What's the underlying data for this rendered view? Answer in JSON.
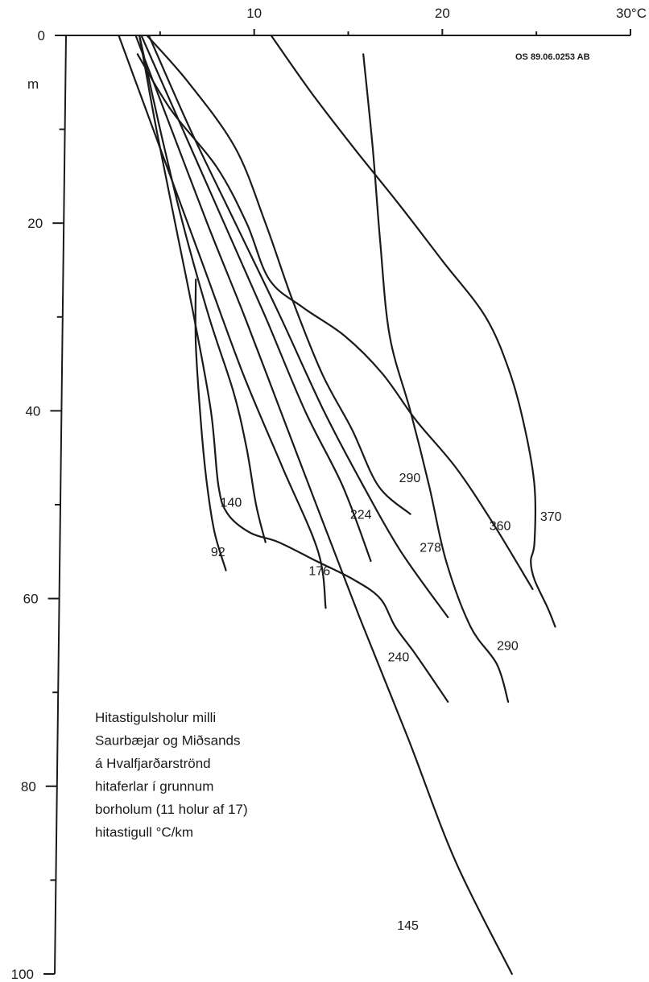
{
  "chart_data": {
    "type": "line",
    "title": "",
    "xlabel": "°C",
    "ylabel": "m",
    "xlim": [
      0,
      30
    ],
    "ylim": [
      0,
      100
    ],
    "y_inverted": true,
    "x_axis_position": "top",
    "x_ticks": [
      "10",
      "20",
      "30°C"
    ],
    "x_tick_values": [
      10,
      20,
      30
    ],
    "y_ticks": [
      "0",
      "20",
      "40",
      "60",
      "80",
      "100"
    ],
    "y_tick_values": [
      0,
      20,
      40,
      60,
      80,
      100
    ],
    "grid": false,
    "reference_id": "OS 89.06.0253 AB",
    "annotation_lines": [
      "Hitastigulsholur milli",
      "Saurbæjar og Miðsands",
      "á Hvalfjarðarströnd",
      "hitaferlar í grunnum",
      "borholum  (11 holur af 17)",
      "hitastigull °C/km"
    ],
    "series": [
      {
        "label": "92",
        "points": [
          [
            6.9,
            26
          ],
          [
            6.9,
            33
          ],
          [
            7.2,
            42
          ],
          [
            7.5,
            48
          ],
          [
            7.9,
            53
          ],
          [
            8.5,
            57
          ]
        ]
      },
      {
        "label": "140",
        "points": [
          [
            3.9,
            0
          ],
          [
            5.0,
            10
          ],
          [
            6.2,
            20
          ],
          [
            7.6,
            30
          ],
          [
            8.9,
            38
          ],
          [
            9.6,
            44
          ],
          [
            10.1,
            50
          ],
          [
            10.6,
            54
          ]
        ]
      },
      {
        "label": "176",
        "points": [
          [
            2.8,
            0
          ],
          [
            5.0,
            12
          ],
          [
            7.2,
            24
          ],
          [
            9.4,
            36
          ],
          [
            11.5,
            46
          ],
          [
            13.4,
            55
          ],
          [
            13.8,
            61
          ]
        ]
      },
      {
        "label": "145",
        "points": [
          [
            3.7,
            0
          ],
          [
            5.6,
            10
          ],
          [
            7.5,
            20
          ],
          [
            9.5,
            30
          ],
          [
            11.4,
            40
          ],
          [
            13.3,
            50
          ],
          [
            15.6,
            62
          ],
          [
            18.2,
            75
          ],
          [
            20.7,
            88
          ],
          [
            23.7,
            100
          ]
        ]
      },
      {
        "label": "224",
        "points": [
          [
            4.0,
            0
          ],
          [
            6.2,
            10
          ],
          [
            8.4,
            20
          ],
          [
            10.6,
            30
          ],
          [
            12.7,
            40
          ],
          [
            14.7,
            48
          ],
          [
            16.2,
            56
          ]
        ]
      },
      {
        "label": "240",
        "points": [
          [
            3.9,
            0
          ],
          [
            4.8,
            10
          ],
          [
            5.8,
            20
          ],
          [
            6.8,
            30
          ],
          [
            7.7,
            40
          ],
          [
            8.1,
            48
          ],
          [
            8.6,
            51
          ],
          [
            9.8,
            53
          ],
          [
            11.3,
            54
          ],
          [
            13.3,
            56
          ],
          [
            15.3,
            58
          ],
          [
            16.7,
            60
          ],
          [
            17.5,
            63
          ],
          [
            18.6,
            66
          ],
          [
            20.3,
            71
          ]
        ]
      },
      {
        "label": "278",
        "points": [
          [
            4.4,
            0
          ],
          [
            6.6,
            10
          ],
          [
            9.0,
            20
          ],
          [
            11.4,
            30
          ],
          [
            13.7,
            40
          ],
          [
            15.8,
            48
          ],
          [
            17.8,
            55
          ],
          [
            20.3,
            62
          ]
        ]
      },
      {
        "label": "290",
        "points": [
          [
            4.3,
            0
          ],
          [
            6.5,
            5
          ],
          [
            9.0,
            12
          ],
          [
            10.6,
            20
          ],
          [
            12.0,
            28
          ],
          [
            13.6,
            36
          ],
          [
            15.2,
            42
          ],
          [
            16.6,
            48
          ],
          [
            18.3,
            51
          ]
        ]
      },
      {
        "label": "290",
        "points": [
          [
            15.8,
            2
          ],
          [
            16.3,
            12
          ],
          [
            16.7,
            22
          ],
          [
            17.2,
            32
          ],
          [
            18.3,
            40
          ],
          [
            19.3,
            48
          ],
          [
            20.2,
            56
          ],
          [
            21.5,
            63
          ],
          [
            22.9,
            67
          ],
          [
            23.5,
            71
          ]
        ]
      },
      {
        "label": "360",
        "points": [
          [
            3.8,
            2
          ],
          [
            5.6,
            8
          ],
          [
            8.0,
            14
          ],
          [
            9.6,
            20
          ],
          [
            10.8,
            26
          ],
          [
            12.6,
            29
          ],
          [
            14.8,
            32
          ],
          [
            16.8,
            36
          ],
          [
            18.6,
            41
          ],
          [
            20.7,
            46
          ],
          [
            22.7,
            52
          ],
          [
            24.8,
            59
          ]
        ]
      },
      {
        "label": "370",
        "points": [
          [
            10.9,
            0
          ],
          [
            13.0,
            6
          ],
          [
            15.3,
            12
          ],
          [
            17.7,
            18
          ],
          [
            20.0,
            24
          ],
          [
            22.3,
            30
          ],
          [
            23.6,
            36
          ],
          [
            24.4,
            42
          ],
          [
            24.9,
            48
          ],
          [
            24.9,
            54
          ],
          [
            24.7,
            56
          ],
          [
            24.9,
            58
          ],
          [
            25.6,
            61
          ],
          [
            26.0,
            63
          ]
        ]
      }
    ],
    "label_anchors": [
      {
        "text": "92",
        "x": 7.7,
        "y": 55.5
      },
      {
        "text": "140",
        "x": 8.2,
        "y": 50.2
      },
      {
        "text": "176",
        "x": 12.9,
        "y": 57.5
      },
      {
        "text": "145",
        "x": 17.6,
        "y": 95.3
      },
      {
        "text": "224",
        "x": 15.1,
        "y": 51.5
      },
      {
        "text": "240",
        "x": 17.1,
        "y": 66.7
      },
      {
        "text": "278",
        "x": 18.8,
        "y": 55.0
      },
      {
        "text": "290",
        "x": 17.7,
        "y": 47.6
      },
      {
        "text": "290",
        "x": 22.9,
        "y": 65.5
      },
      {
        "text": "360",
        "x": 22.5,
        "y": 52.7
      },
      {
        "text": "370",
        "x": 25.2,
        "y": 51.7
      }
    ]
  }
}
